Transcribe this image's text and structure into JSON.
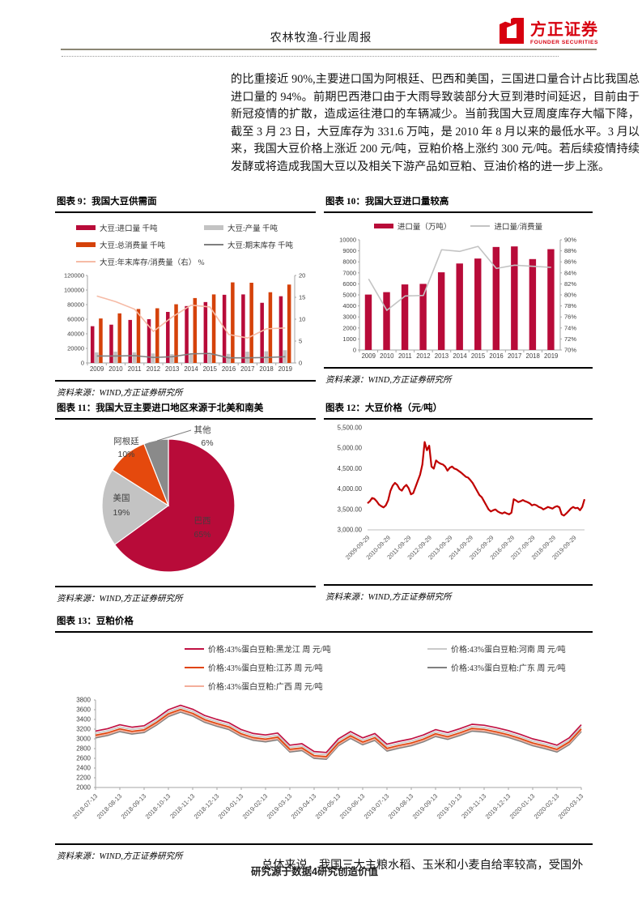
{
  "page": {
    "header_title": "农林牧渔-行业周报",
    "logo_cn": "方正证券",
    "logo_en": "FOUNDER SECURITIES",
    "brand_color": "#D7000F",
    "intro_paragraph": "的比重接近 90%,主要进口国为阿根廷、巴西和美国，三国进口量合计占比我国总进口量的 94%。前期巴西港口由于大雨导致装部分大豆到港时间延迟，目前由于新冠疫情的扩散，造成运往港口的车辆减少。当前我国大豆周度库存大幅下降，截至 3 月 23 日，大豆库存为 331.6 万吨，是 2010 年 8 月以来的最低水平。3 月以来，我国大豆价格上涨近 200 元/吨，豆粕价格上涨约 300 元/吨。若后续疫情持续发酵或将造成我国大豆以及相关下游产品如豆粕、豆油价格的进一步上涨。",
    "source_label": "资料来源：WIND,方正证券研究所",
    "closing_paragraph": "总体来说，我国三大主粮水稻、玉米和小麦自给率较高，受国外",
    "footer": "研究源于数据4研究创造价值"
  },
  "chart_data": [
    {
      "id": "fig9",
      "type": "bar",
      "title": "图表 9：我国大豆供需面",
      "categories": [
        "2009",
        "2010",
        "2011",
        "2012",
        "2013",
        "2014",
        "2015",
        "2016",
        "2017",
        "2018",
        "2019"
      ],
      "bar_series": [
        {
          "name": "大豆:进口量 千吨",
          "color": "#B80B39",
          "values": [
            50400,
            52500,
            59000,
            60000,
            70000,
            78000,
            83500,
            93500,
            94000,
            82500,
            91500
          ]
        },
        {
          "name": "大豆:产量 千吨",
          "color": "#C3C3C3",
          "values": [
            14500,
            15500,
            14500,
            13000,
            12000,
            12500,
            11500,
            12500,
            15500,
            16000,
            17500
          ]
        },
        {
          "name": "大豆:总消费量 千吨",
          "color": "#D5420A",
          "values": [
            61000,
            68000,
            74000,
            75000,
            80500,
            89000,
            94000,
            110500,
            110000,
            97000,
            107500
          ]
        }
      ],
      "line_series": [
        {
          "name": "大豆:期末库存 千吨",
          "color": "#7F7F7F",
          "axis": "left",
          "values": [
            9500,
            9500,
            10000,
            7500,
            8500,
            12500,
            13000,
            7000,
            7000,
            7500,
            8500
          ]
        },
        {
          "name": "大豆:年末库存/消费量（右） %",
          "color": "#F6BBA6",
          "axis": "right",
          "values": [
            15.3,
            14.0,
            12.3,
            7.2,
            10.5,
            13.2,
            12.8,
            6.5,
            5.7,
            7.8,
            8.0
          ]
        }
      ],
      "left_axis": {
        "min": 0,
        "max": 120000,
        "step": 20000
      },
      "right_axis": {
        "min": 0,
        "max": 20,
        "step": 5
      }
    },
    {
      "id": "fig10",
      "type": "bar",
      "title": "图表 10：我国大豆进口量较高",
      "categories": [
        "2009",
        "2010",
        "2011",
        "2012",
        "2013",
        "2014",
        "2015",
        "2016",
        "2017",
        "2018",
        "2019"
      ],
      "bar_series": [
        {
          "name": "进口量（万吨）",
          "color": "#B80B39",
          "values": [
            5030,
            5250,
            5950,
            6000,
            7050,
            7850,
            8300,
            9350,
            9400,
            8250,
            9150
          ]
        }
      ],
      "line_series": [
        {
          "name": "进口量/消费量",
          "color": "#C3C3C3",
          "axis": "right",
          "values": [
            82.9,
            77.2,
            79.8,
            79.9,
            88.2,
            87.9,
            88.8,
            84.8,
            85.4,
            85.2,
            85.0
          ]
        }
      ],
      "left_axis": {
        "min": 0,
        "max": 10000,
        "step": 1000
      },
      "right_axis": {
        "min": 70,
        "max": 90,
        "step": 2,
        "suffix": "%"
      }
    },
    {
      "id": "fig11",
      "type": "pie",
      "title": "图表 11：我国大豆主要进口地区来源于北美和南美",
      "slices": [
        {
          "label": "巴西",
          "value": 65,
          "color": "#B80B39"
        },
        {
          "label": "美国",
          "value": 19,
          "color": "#C3C3C3"
        },
        {
          "label": "阿根廷",
          "value": 10,
          "color": "#E5490D"
        },
        {
          "label": "其他",
          "value": 6,
          "color": "#8A8A8A"
        }
      ]
    },
    {
      "id": "fig12",
      "type": "line",
      "title": "图表 12：大豆价格（元/吨）",
      "line_color": "#C00000",
      "y_axis": {
        "min": 3000,
        "max": 5500,
        "step": 500
      },
      "x_labels": [
        "2009-09-29",
        "2010-09-29",
        "2011-09-29",
        "2012-09-29",
        "2013-09-29",
        "2014-09-29",
        "2015-09-29",
        "2016-09-29",
        "2017-09-29",
        "2018-09-29",
        "2019-09-29"
      ],
      "values": [
        3650,
        3700,
        3780,
        3760,
        3700,
        3620,
        3580,
        3550,
        3600,
        3720,
        3950,
        4080,
        4150,
        4100,
        4000,
        3960,
        4050,
        4100,
        4020,
        3870,
        3900,
        4050,
        4200,
        4350,
        4600,
        5150,
        4950,
        5060,
        4550,
        4500,
        4700,
        4650,
        4620,
        4600,
        4550,
        4450,
        4520,
        4550,
        4500,
        4480,
        4440,
        4400,
        4350,
        4300,
        4280,
        4220,
        4150,
        4050,
        3950,
        3850,
        3800,
        3700,
        3600,
        3500,
        3450,
        3480,
        3500,
        3450,
        3420,
        3400,
        3430,
        3400,
        3380,
        3420,
        3750,
        3720,
        3680,
        3700,
        3730,
        3700,
        3680,
        3650,
        3600,
        3620,
        3600,
        3560,
        3540,
        3500,
        3530,
        3560,
        3540,
        3520,
        3560,
        3580,
        3550,
        3380,
        3350,
        3400,
        3460,
        3520,
        3560,
        3530,
        3540,
        3480,
        3560,
        3750
      ]
    },
    {
      "id": "fig13",
      "type": "line",
      "title": "图表 13：豆粕价格",
      "y_axis": {
        "min": 2000,
        "max": 3800,
        "step": 200
      },
      "x_labels": [
        "2018-07-13",
        "2018-08-13",
        "2018-09-13",
        "2018-10-13",
        "2018-11-13",
        "2018-12-13",
        "2019-01-13",
        "2019-02-13",
        "2019-03-13",
        "2019-04-13",
        "2019-05-13",
        "2019-06-13",
        "2019-07-13",
        "2019-08-13",
        "2019-09-13",
        "2019-10-13",
        "2019-11-13",
        "2019-12-13",
        "2020-01-13",
        "2020-02-13",
        "2020-03-13"
      ],
      "series": [
        {
          "name": "价格:43%蛋白豆粕:黑龙江 周 元/吨",
          "color": "#C11243",
          "values": [
            3160,
            3210,
            3290,
            3240,
            3270,
            3420,
            3600,
            3690,
            3610,
            3480,
            3400,
            3330,
            3190,
            3110,
            3080,
            3120,
            2870,
            2900,
            2740,
            2720,
            3000,
            3150,
            3020,
            3110,
            2890,
            2950,
            3000,
            3080,
            3190,
            3130,
            3210,
            3300,
            3280,
            3230,
            3170,
            3090,
            3000,
            2940,
            2870,
            3020,
            3290
          ]
        },
        {
          "name": "价格:43%蛋白豆粕:河南 周 元/吨",
          "color": "#C9C9C9",
          "values": [
            3115,
            3165,
            3245,
            3195,
            3225,
            3375,
            3555,
            3645,
            3565,
            3435,
            3355,
            3285,
            3145,
            3065,
            3035,
            3075,
            2825,
            2855,
            2695,
            2675,
            2955,
            3105,
            2975,
            3065,
            2845,
            2905,
            2955,
            3035,
            3145,
            3085,
            3165,
            3255,
            3235,
            3185,
            3125,
            3045,
            2955,
            2895,
            2825,
            2975,
            3245
          ]
        },
        {
          "name": "价格:43%蛋白豆粕:江苏 周 元/吨",
          "color": "#E0440B",
          "values": [
            3075,
            3125,
            3205,
            3155,
            3185,
            3335,
            3515,
            3605,
            3525,
            3395,
            3315,
            3245,
            3105,
            3025,
            2995,
            3035,
            2785,
            2815,
            2655,
            2635,
            2915,
            3065,
            2935,
            3025,
            2805,
            2865,
            2915,
            2995,
            3105,
            3045,
            3125,
            3215,
            3195,
            3145,
            3085,
            3005,
            2915,
            2855,
            2785,
            2935,
            3205
          ]
        },
        {
          "name": "价格:43%蛋白豆粕:广东 周 元/吨",
          "color": "#808080",
          "values": [
            3020,
            3070,
            3150,
            3100,
            3130,
            3280,
            3460,
            3550,
            3470,
            3340,
            3260,
            3190,
            3050,
            2970,
            2940,
            2980,
            2730,
            2760,
            2600,
            2580,
            2860,
            3010,
            2880,
            2970,
            2750,
            2810,
            2860,
            2940,
            3050,
            2990,
            3070,
            3160,
            3140,
            3090,
            3030,
            2950,
            2860,
            2800,
            2730,
            2880,
            3150
          ]
        },
        {
          "name": "价格:43%蛋白豆粕:广西 周 元/吨",
          "color": "#F3AE9B",
          "values": [
            3045,
            3095,
            3175,
            3125,
            3155,
            3305,
            3485,
            3575,
            3495,
            3365,
            3285,
            3215,
            3075,
            2995,
            2965,
            3005,
            2755,
            2785,
            2625,
            2605,
            2885,
            3035,
            2905,
            2995,
            2775,
            2835,
            2885,
            2965,
            3075,
            3015,
            3095,
            3185,
            3165,
            3115,
            3055,
            2975,
            2885,
            2825,
            2755,
            2905,
            3175
          ]
        }
      ]
    }
  ]
}
